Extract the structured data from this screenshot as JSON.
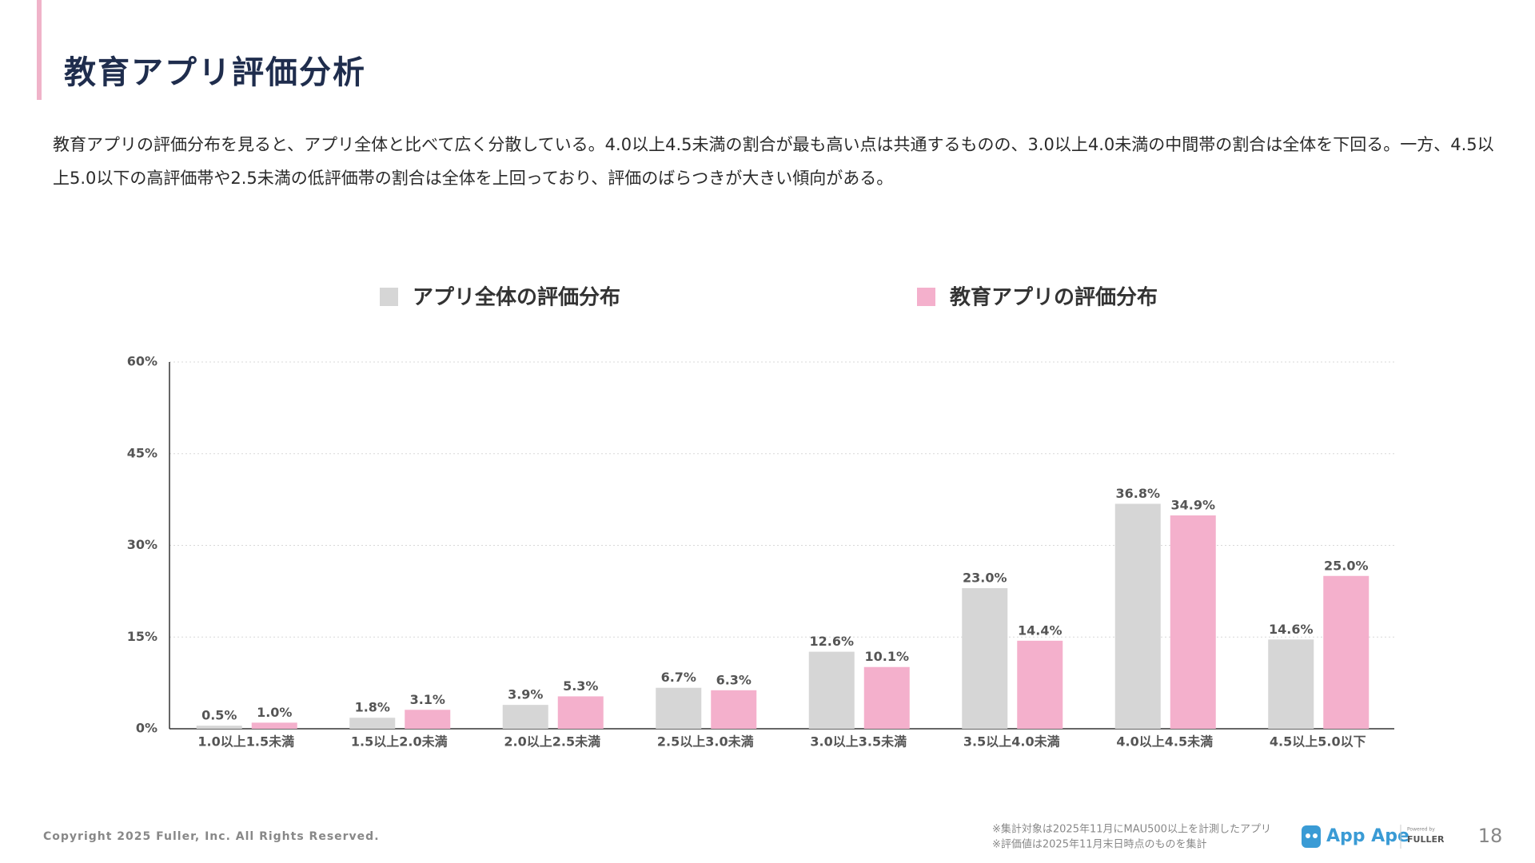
{
  "header": {
    "title": "教育アプリ評価分析"
  },
  "description": "教育アプリの評価分布を見ると、アプリ全体と比べて広く分散している。4.0以上4.5未満の割合が最も高い点は共通するものの、3.0以上4.0未満の中間帯の割合は全体を下回る。一方、4.5以上5.0以下の高評価帯や2.5未満の低評価帯の割合は全体を上回っており、評価のばらつきが大きい傾向がある。",
  "chart_data": {
    "type": "bar",
    "categories": [
      "1.0以上1.5未満",
      "1.5以上2.0未満",
      "2.0以上2.5未満",
      "2.5以上3.0未満",
      "3.0以上3.5未満",
      "3.5以上4.0未満",
      "4.0以上4.5未満",
      "4.5以上5.0以下"
    ],
    "series": [
      {
        "name": "アプリ全体の評価分布",
        "color": "#d6d6d6",
        "values": [
          0.5,
          1.8,
          3.9,
          6.7,
          12.6,
          23.0,
          36.8,
          14.6
        ],
        "value_labels": [
          "0.5%",
          "1.8%",
          "3.9%",
          "6.7%",
          "12.6%",
          "23.0%",
          "36.8%",
          "14.6%"
        ]
      },
      {
        "name": "教育アプリの評価分布",
        "color": "#f4b0cc",
        "values": [
          1.0,
          3.1,
          5.3,
          6.3,
          10.1,
          14.4,
          34.9,
          25.0
        ],
        "value_labels": [
          "1.0%",
          "3.1%",
          "5.3%",
          "6.3%",
          "10.1%",
          "14.4%",
          "34.9%",
          "25.0%"
        ]
      }
    ],
    "ylim": [
      0,
      60
    ],
    "yticks": [
      {
        "value": 0,
        "label": "0%"
      },
      {
        "value": 15,
        "label": "15%"
      },
      {
        "value": 30,
        "label": "30%"
      },
      {
        "value": 45,
        "label": "45%"
      },
      {
        "value": 60,
        "label": "60%"
      }
    ],
    "grid": true
  },
  "footer": {
    "copyright": "Copyright 2025 Fuller, Inc. All Rights Reserved.",
    "notes": [
      "※集計対象は2025年11月にMAU500以上を計測したアプリ",
      "※評価値は2025年11月末日時点のものを集計"
    ],
    "logo": {
      "name": "App Ape",
      "powered_by": "Powered by",
      "company": "FULLER"
    },
    "page_number": "18"
  }
}
